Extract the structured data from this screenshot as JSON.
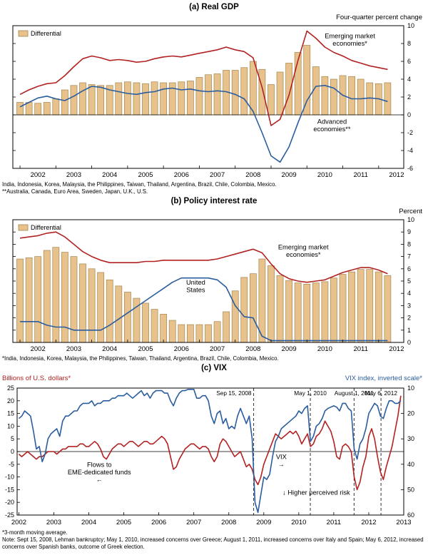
{
  "colors": {
    "red": "#b22222",
    "blue": "#2a5d9f",
    "bar_fill": "#e8c28c",
    "bar_stroke": "#a5854f",
    "event_line": "#333333",
    "axis": "#000000"
  },
  "chart_data": [
    {
      "type": "bar+line",
      "title": "(a) Real GDP",
      "unit_label": "Four-quarter percent change",
      "legend": "Differential",
      "frequency": "quarterly",
      "x_start": 2002.0,
      "x_step": 0.25,
      "x_domain": [
        2001.8,
        2012.7
      ],
      "x_year_labels": [
        2002,
        2003,
        2004,
        2005,
        2006,
        2007,
        2008,
        2009,
        2010,
        2011,
        2012
      ],
      "axes": {
        "right": {
          "domain": [
            -6,
            10
          ],
          "ticks": [
            10,
            8,
            6,
            4,
            2,
            0,
            -2,
            -4,
            -6
          ]
        }
      },
      "zero_axis": "right",
      "bars": {
        "name": "Differential",
        "axis": "right",
        "values": [
          1.4,
          1.4,
          1.3,
          1.4,
          1.8,
          2.8,
          3.3,
          3.6,
          3.4,
          3.3,
          3.3,
          3.6,
          3.7,
          3.6,
          3.5,
          3.7,
          3.6,
          3.6,
          3.7,
          3.8,
          4.2,
          4.5,
          4.6,
          5.0,
          5.0,
          5.3,
          6.0,
          5.1,
          3.4,
          4.8,
          5.8,
          7.0,
          7.8,
          5.4,
          4.3,
          4.0,
          4.4,
          4.3,
          4.0,
          3.6,
          3.5,
          3.6
        ]
      },
      "series": [
        {
          "name": "Emerging market economies*",
          "axis": "right",
          "color_key": "red",
          "values": [
            2.3,
            2.8,
            3.2,
            3.5,
            3.6,
            4.4,
            5.4,
            6.3,
            6.6,
            6.4,
            6.1,
            6.2,
            6.1,
            5.9,
            6.0,
            6.3,
            6.5,
            6.6,
            6.5,
            6.7,
            6.9,
            7.1,
            7.3,
            7.6,
            7.3,
            7.1,
            6.4,
            3.1,
            -1.2,
            -0.5,
            2.2,
            6.1,
            9.4,
            8.6,
            7.6,
            7.0,
            6.6,
            6.1,
            5.8,
            5.5,
            5.3,
            5.1
          ]
        },
        {
          "name": "Advanced economies**",
          "axis": "right",
          "color_key": "blue",
          "values": [
            0.9,
            1.4,
            1.9,
            2.1,
            1.8,
            1.6,
            2.1,
            2.7,
            3.2,
            3.1,
            2.8,
            2.6,
            2.4,
            2.3,
            2.5,
            2.6,
            2.9,
            3.0,
            2.8,
            2.9,
            2.7,
            2.6,
            2.7,
            2.6,
            2.3,
            1.8,
            0.4,
            -2.0,
            -4.6,
            -5.3,
            -3.6,
            -0.9,
            1.6,
            3.2,
            3.3,
            3.0,
            2.2,
            1.8,
            1.8,
            1.9,
            1.8,
            1.5
          ]
        }
      ],
      "annotations": [
        {
          "lines": [
            "Emerging market",
            "economies*"
          ],
          "t": 2011.2,
          "v": 8.6,
          "axis": "right",
          "color_key": "red"
        },
        {
          "lines": [
            "Advanced",
            "economies**"
          ],
          "t": 2010.7,
          "v": -1.0,
          "axis": "right",
          "color_key": "blue"
        }
      ],
      "footnotes": [
        "India, Indonesia, Korea, Malaysia, the Philippines, Taiwan, Thailand, Argentina, Brazil, Chile, Colombia, Mexico.",
        "**Australia, Canada, Euro Area, Sweden, Japan, U.K., U.S."
      ]
    },
    {
      "type": "bar+line",
      "title": "(b) Policy interest rate",
      "unit_label": "Percent",
      "legend": "Differential",
      "frequency": "quarterly",
      "x_start": 2002.0,
      "x_step": 0.25,
      "x_domain": [
        2001.8,
        2012.7
      ],
      "x_year_labels": [
        2002,
        2003,
        2004,
        2005,
        2006,
        2007,
        2008,
        2009,
        2010,
        2011,
        2012
      ],
      "axes": {
        "right": {
          "domain": [
            0,
            10
          ],
          "ticks": [
            10,
            9,
            8,
            7,
            6,
            5,
            4,
            3,
            2,
            1,
            0
          ]
        }
      },
      "bars": {
        "name": "Differential",
        "axis": "right",
        "values": [
          6.8,
          6.9,
          7.0,
          7.5,
          7.75,
          7.35,
          7.0,
          6.4,
          6.0,
          5.7,
          5.1,
          4.6,
          4.1,
          3.6,
          3.2,
          2.7,
          2.3,
          1.8,
          1.45,
          1.45,
          1.45,
          1.45,
          1.7,
          2.5,
          4.2,
          5.3,
          5.6,
          6.8,
          6.25,
          5.45,
          5.05,
          4.85,
          4.75,
          4.85,
          4.95,
          5.25,
          5.55,
          5.75,
          5.95,
          5.95,
          5.75,
          5.45
        ]
      },
      "series": [
        {
          "name": "Emerging market economies*",
          "axis": "right",
          "color_key": "red",
          "values": [
            8.5,
            8.6,
            8.7,
            8.9,
            9.0,
            8.6,
            8.0,
            7.4,
            7.0,
            6.7,
            6.5,
            6.5,
            6.5,
            6.5,
            6.6,
            6.6,
            6.7,
            6.7,
            6.7,
            6.7,
            6.7,
            6.7,
            6.8,
            7.0,
            7.2,
            7.4,
            7.6,
            7.3,
            6.4,
            5.6,
            5.2,
            5.0,
            4.9,
            5.0,
            5.1,
            5.4,
            5.7,
            5.9,
            6.1,
            6.1,
            5.9,
            5.6
          ]
        },
        {
          "name": "United States",
          "axis": "right",
          "color_key": "blue",
          "values": [
            1.7,
            1.7,
            1.7,
            1.4,
            1.25,
            1.25,
            1.0,
            1.0,
            1.0,
            1.0,
            1.4,
            1.9,
            2.4,
            2.9,
            3.4,
            3.9,
            4.4,
            4.9,
            5.25,
            5.25,
            5.25,
            5.25,
            5.1,
            4.5,
            3.0,
            2.1,
            2.0,
            0.5,
            0.15,
            0.15,
            0.15,
            0.15,
            0.15,
            0.15,
            0.15,
            0.15,
            0.15,
            0.15,
            0.15,
            0.15,
            0.15,
            0.15
          ]
        }
      ],
      "annotations": [
        {
          "lines": [
            "Emerging market",
            "economies*"
          ],
          "t": 2009.9,
          "v": 7.6,
          "axis": "right",
          "color_key": "red"
        },
        {
          "lines": [
            "United",
            "States"
          ],
          "t": 2006.9,
          "v": 4.7,
          "axis": "right",
          "color_key": "blue"
        }
      ],
      "footnotes": [
        "*India, Indonesia, Korea, Malaysia, the Philippines, Taiwan, Thailand, Argentina, Brazil, Chile, Colombia, Mexico."
      ]
    },
    {
      "type": "line",
      "title": "(c) VIX",
      "axis_titles": {
        "left": "Billions of U.S. dollars*",
        "right": "VIX index, inverted scale*"
      },
      "frequency": "monthly",
      "x_start": 2002.0,
      "x_step": 0.0833333,
      "x_domain": [
        2001.95,
        2013.0
      ],
      "x_year_labels": [
        2002,
        2003,
        2004,
        2005,
        2006,
        2007,
        2008,
        2009,
        2010,
        2011,
        2012,
        2013
      ],
      "axes": {
        "left": {
          "domain": [
            -25,
            25
          ],
          "ticks": [
            25,
            20,
            15,
            10,
            5,
            0,
            -5,
            -10,
            -15,
            -20,
            -25
          ]
        },
        "right": {
          "domain": [
            60,
            10
          ],
          "ticks": [
            10,
            20,
            30,
            40,
            50,
            60
          ]
        }
      },
      "zero_axis": "left",
      "series": [
        {
          "name": "Flows to EME-dedicated funds",
          "axis": "left",
          "color_key": "red",
          "values": [
            -1,
            -2,
            -1,
            0,
            -1,
            -2,
            -3,
            -2,
            -2,
            -1,
            0,
            0,
            0,
            -1,
            0,
            1,
            1,
            2,
            2,
            2,
            2,
            3,
            3,
            2,
            2,
            3,
            4,
            3,
            1,
            -2,
            -3,
            -1,
            1,
            2,
            3,
            3,
            2,
            3,
            4,
            4,
            3,
            2,
            3,
            4,
            4,
            3,
            3,
            4,
            5,
            6,
            5,
            3,
            -2,
            -7,
            -6,
            -3,
            -1,
            1,
            2,
            3,
            3,
            2,
            1,
            2,
            2,
            1,
            -2,
            -4,
            -2,
            3,
            5,
            4,
            2,
            0,
            -2,
            -1,
            0,
            -3,
            -6,
            -5,
            -7,
            -11,
            -13,
            -10,
            -5,
            -2,
            1,
            4,
            7,
            6,
            5,
            6,
            7,
            8,
            7,
            8,
            6,
            3,
            5,
            7,
            2,
            3,
            6,
            7,
            9,
            12,
            10,
            8,
            4,
            -2,
            -3,
            2,
            3,
            2,
            0,
            -10,
            -15,
            -12,
            -6,
            -2,
            6,
            9,
            5,
            -2,
            -8,
            -11,
            -6,
            -2,
            2,
            8,
            14,
            22
          ]
        },
        {
          "name": "VIX",
          "axis": "right",
          "color_key": "blue",
          "values": [
            22,
            21,
            19,
            20,
            21,
            27,
            34,
            33,
            39,
            36,
            30,
            28,
            27,
            26,
            29,
            23,
            21,
            21,
            20,
            19,
            19,
            17,
            16,
            16,
            16,
            15,
            17,
            16,
            16,
            15,
            15,
            15,
            14,
            14,
            13,
            13,
            13,
            12,
            13,
            14,
            13,
            12,
            11,
            13,
            12,
            14,
            12,
            11,
            11,
            11,
            12,
            12,
            15,
            17,
            14,
            12,
            11,
            11,
            10.5,
            10.5,
            10.5,
            14,
            14,
            13,
            13,
            15,
            21,
            24,
            20,
            19,
            24,
            22,
            26,
            25,
            26,
            21,
            18,
            21,
            24,
            21,
            30,
            55,
            59,
            52,
            45,
            46,
            44,
            37,
            31,
            29,
            26,
            25,
            24,
            23,
            22,
            21,
            19,
            20,
            18,
            17,
            31,
            29,
            25,
            24,
            22,
            19,
            18,
            17.5,
            17,
            17.5,
            19,
            16,
            16,
            18,
            19,
            34,
            38,
            32,
            30,
            26,
            20,
            18,
            16,
            17,
            21,
            22,
            18,
            15,
            15,
            16,
            16,
            15
          ]
        }
      ],
      "events": [
        {
          "label": "Sep 15, 2008",
          "t": 2008.71,
          "anchor": "end"
        },
        {
          "label": "May 1, 2010",
          "t": 2010.33,
          "anchor": "middle"
        },
        {
          "label": "August 1, 2011",
          "t": 2011.58,
          "anchor": "middle"
        },
        {
          "label": "May 6, 2012",
          "t": 2012.35,
          "anchor": "middle"
        }
      ],
      "annotations": [
        {
          "lines": [
            "Flows to",
            "EME-dedicated funds",
            "←"
          ],
          "t": 2004.3,
          "v": -6,
          "axis": "left",
          "color_key": "red"
        },
        {
          "lines": [
            "VIX",
            "→"
          ],
          "t": 2009.5,
          "v": 38,
          "axis": "right",
          "color_key": "blue"
        },
        {
          "lines": [
            "↓ Higher perceived risk"
          ],
          "t": 2010.5,
          "v": 52,
          "axis": "right",
          "color_key": "blue"
        }
      ],
      "footnotes": [
        "*3-month moving average.",
        "Note: Sept 15, 2008, Lehman bankruptcy; May 1, 2010, increased concerns over Greece; August 1, 2011, increased concerns over Italy and Spain; May 6, 2012, increased concerns over Spanish banks, outcome of Greek election."
      ]
    }
  ]
}
